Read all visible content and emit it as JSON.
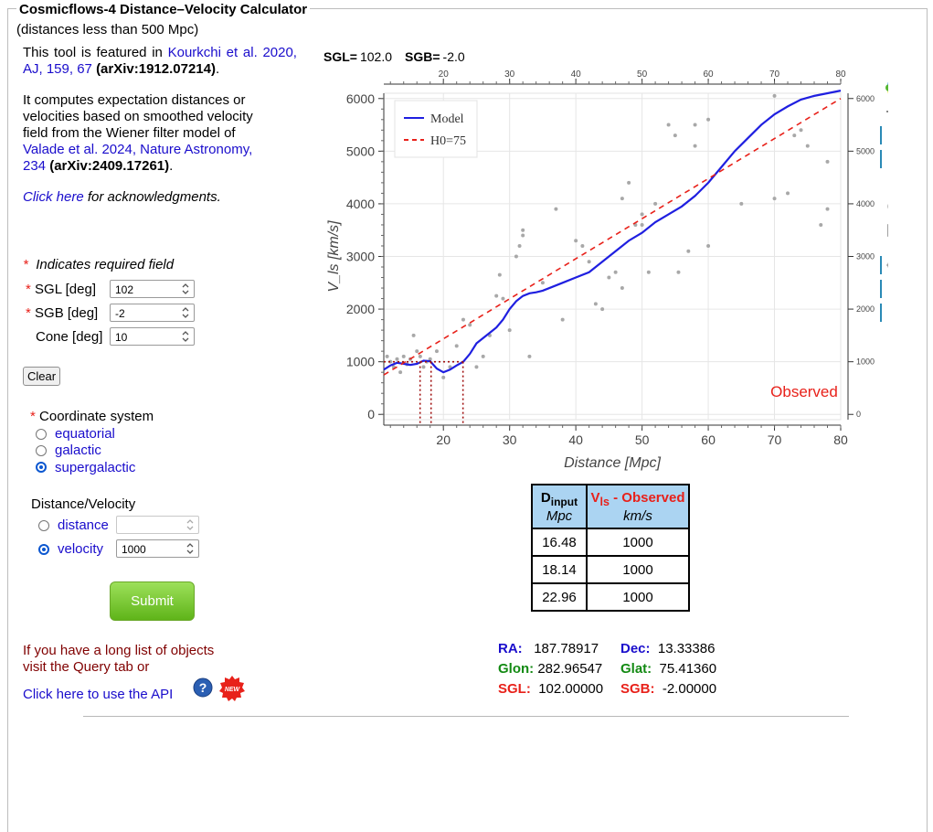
{
  "title": "Cosmicflows-4 Distance–Velocity Calculator",
  "subtitle": "(distances less than 500 Mpc)",
  "intro": {
    "p1_text": "This tool is featured in ",
    "p1_link": "Kourkchi et al. 2020, AJ, 159, 67",
    "p1_arxiv": "(arXiv:1912.07214)",
    "p2_text": "It computes expectation distances or velocities based on smoothed velocity field from the Wiener filter model of ",
    "p2_link": "Valade et al. 2024, Nature Astronomy, 234",
    "p2_arxiv": "(arXiv:2409.17261)",
    "ack_link": "Click here",
    "ack_text": " for acknowledgments."
  },
  "form": {
    "required_note": "Indicates required field",
    "sgl_label": "SGL  [deg]",
    "sgl_value": "102",
    "sgb_label": "SGB  [deg]",
    "sgb_value": "-2",
    "cone_label": "Cone [deg]",
    "cone_value": "10",
    "clear_label": "Clear",
    "coord_system_label": "Coordinate system",
    "coord_options": [
      "equatorial",
      "galactic",
      "supergalactic"
    ],
    "coord_selected": "supergalactic",
    "dv_label": "Distance/Velocity",
    "dv_options": [
      "distance",
      "velocity"
    ],
    "dv_selected": "velocity",
    "distance_value": "",
    "velocity_value": "1000",
    "submit_label": "Submit"
  },
  "bottom_left": {
    "list_text_1": "If you have a long list of objects",
    "list_text_2": "visit the Query tab or",
    "api_text": "Click here to use the API",
    "new_badge": "NEW"
  },
  "plot_header": {
    "sgl_label": "SGL=",
    "sgl_value": "102.0",
    "sgb_label": "SGB=",
    "sgb_value": "-2.0"
  },
  "chart_data": {
    "type": "line",
    "xlabel": "Distance [Mpc]",
    "ylabel": "V_ls [km/s]",
    "xlim": [
      11,
      80
    ],
    "ylim": [
      -100,
      6100
    ],
    "x_ticks": [
      20,
      30,
      40,
      50,
      60,
      70,
      80
    ],
    "y_ticks": [
      0,
      1000,
      2000,
      3000,
      4000,
      5000,
      6000
    ],
    "grid": true,
    "legend_position": "top-left",
    "series": [
      {
        "name": "Model",
        "style": "solid",
        "color": "#1f1fe0",
        "x": [
          11,
          12,
          13,
          14,
          15,
          16,
          17,
          18,
          19,
          20,
          21,
          22,
          23,
          24,
          25,
          26,
          27,
          28,
          29,
          30,
          31,
          32,
          33,
          34,
          35,
          36,
          37,
          38,
          40,
          42,
          44,
          46,
          48,
          50,
          52,
          54,
          56,
          58,
          60,
          62,
          64,
          66,
          68,
          70,
          72,
          74,
          76,
          78,
          80
        ],
        "y": [
          850,
          930,
          980,
          960,
          940,
          960,
          1020,
          1010,
          870,
          800,
          850,
          930,
          1000,
          1150,
          1350,
          1450,
          1550,
          1650,
          1800,
          2000,
          2150,
          2250,
          2300,
          2320,
          2350,
          2400,
          2450,
          2500,
          2600,
          2700,
          2900,
          3100,
          3300,
          3450,
          3650,
          3800,
          3950,
          4150,
          4400,
          4700,
          5000,
          5250,
          5500,
          5700,
          5850,
          5980,
          6050,
          6100,
          6150
        ]
      },
      {
        "name": "H0=75",
        "style": "dashed",
        "color": "#e8211a",
        "x": [
          11,
          80
        ],
        "y": [
          750,
          6000
        ]
      }
    ],
    "scatter": {
      "color": "#a8a8a8",
      "x": [
        11.5,
        12,
        12.5,
        13,
        13.5,
        14,
        14.5,
        15,
        15.5,
        16,
        16.5,
        17,
        17.5,
        18,
        19,
        20,
        21,
        22,
        23,
        24,
        25,
        26,
        27,
        28,
        28.5,
        29,
        30,
        31,
        31.5,
        32,
        32,
        33,
        35,
        37,
        38,
        40,
        41,
        42,
        43,
        44,
        45,
        46,
        47,
        47,
        48,
        49,
        50,
        50,
        51,
        52,
        54,
        55,
        55.5,
        57,
        58,
        58,
        60,
        60,
        65,
        70,
        70,
        72,
        73,
        74,
        75,
        77,
        78,
        78
      ],
      "y": [
        1100,
        1000,
        900,
        1050,
        800,
        1100,
        950,
        1050,
        1500,
        1200,
        1100,
        900,
        1000,
        1050,
        1200,
        700,
        900,
        1300,
        1800,
        1700,
        900,
        1100,
        1500,
        2250,
        2650,
        2200,
        1600,
        3000,
        3200,
        3500,
        3400,
        1100,
        2500,
        3900,
        1800,
        3300,
        3200,
        2900,
        2100,
        2000,
        2600,
        2700,
        4100,
        2400,
        4400,
        3600,
        3800,
        3600,
        2700,
        4000,
        5500,
        5300,
        2700,
        3100,
        5500,
        5100,
        3200,
        5600,
        4000,
        6050,
        4100,
        4200,
        5300,
        5400,
        5100,
        3600,
        4800,
        3900
      ]
    },
    "annotations": [
      {
        "text": "Observed",
        "color": "#e8211a"
      }
    ],
    "observed_velocity": 1000,
    "observed_distances": [
      16.48,
      18.14,
      22.96
    ]
  },
  "toolbar": {
    "icons": [
      "bokeh-logo-icon",
      "pan-icon",
      "box-zoom-icon",
      "wheel-zoom-icon",
      "zoom-in-icon",
      "reset-icon",
      "save-icon",
      "crosshair-icon",
      "hover-icon",
      "hover-icon-2"
    ]
  },
  "result_table": {
    "col1_header": "D",
    "col1_header_sub": "input",
    "col1_unit": "Mpc",
    "col2_header_sym": "V",
    "col2_header_sub": "ls",
    "col2_header_suffix": " - Observed",
    "col2_unit": "km/s",
    "rows": [
      {
        "d": "16.48",
        "v": "1000"
      },
      {
        "d": "18.14",
        "v": "1000"
      },
      {
        "d": "22.96",
        "v": "1000"
      }
    ]
  },
  "coordinates": {
    "ra_label": "RA:",
    "ra_value": "187.78917",
    "dec_label": "Dec:",
    "dec_value": "13.33386",
    "glon_label": "Glon:",
    "glon_value": "282.96547",
    "glat_label": "Glat:",
    "glat_value": "75.41360",
    "sgl_label": "SGL:",
    "sgl_value": "102.00000",
    "sgb_label": "SGB:",
    "sgb_value": "-2.00000"
  }
}
